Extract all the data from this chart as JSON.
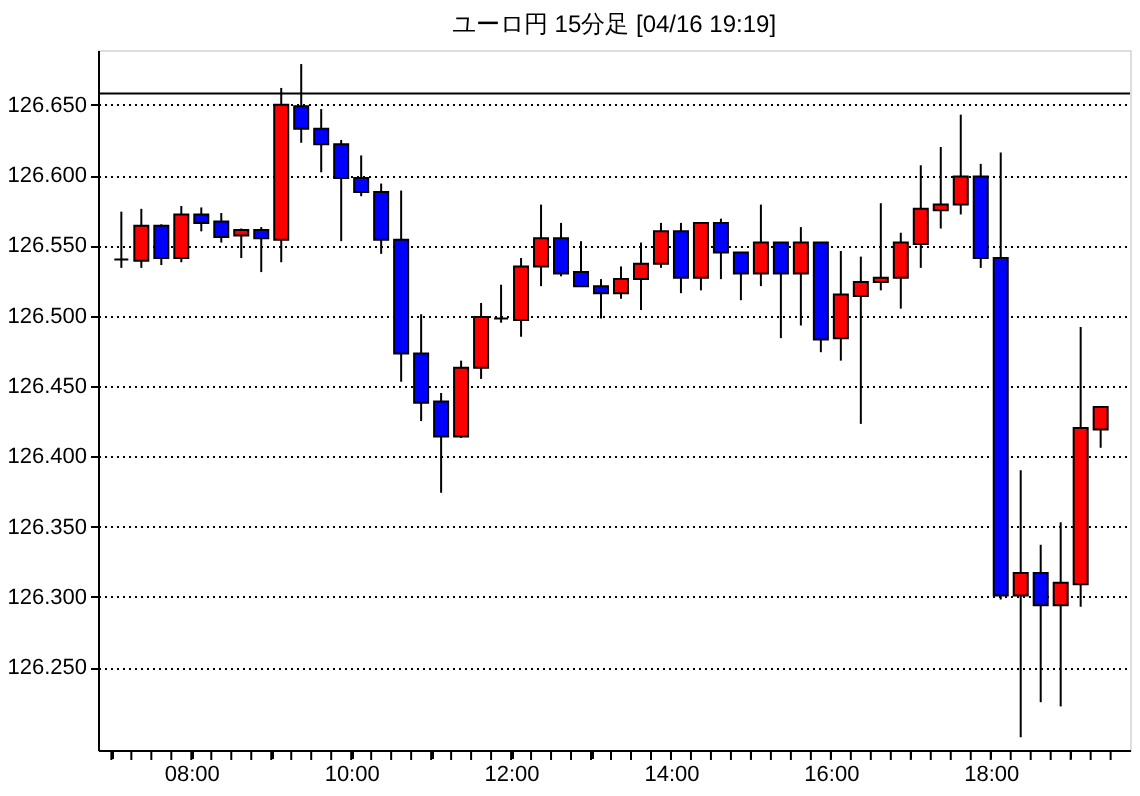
{
  "chart_data": {
    "type": "candlestick",
    "title": "ユーロ円 15分足 [04/16 19:19]",
    "x": [
      7.125,
      7.375,
      7.625,
      7.875,
      8.125,
      8.375,
      8.625,
      8.875,
      9.125,
      9.375,
      9.625,
      9.875,
      10.125,
      10.375,
      10.625,
      10.875,
      11.125,
      11.375,
      11.625,
      11.875,
      12.125,
      12.375,
      12.625,
      12.875,
      13.125,
      13.375,
      13.625,
      13.875,
      14.125,
      14.375,
      14.625,
      14.875,
      15.125,
      15.375,
      15.625,
      15.875,
      16.125,
      16.375,
      16.625,
      16.875,
      17.125,
      17.375,
      17.625,
      17.875,
      18.125,
      18.375,
      18.625,
      18.875,
      19.125,
      19.375
    ],
    "ohlc": [
      [
        126.54,
        126.574,
        126.534,
        126.54
      ],
      [
        126.539,
        126.576,
        126.534,
        126.564
      ],
      [
        126.564,
        126.565,
        126.536,
        126.541
      ],
      [
        126.541,
        126.578,
        126.538,
        126.572
      ],
      [
        126.572,
        126.577,
        126.56,
        126.566
      ],
      [
        126.567,
        126.573,
        126.552,
        126.556
      ],
      [
        126.557,
        126.562,
        126.541,
        126.561
      ],
      [
        126.561,
        126.563,
        126.531,
        126.555
      ],
      [
        126.554,
        126.662,
        126.538,
        126.65
      ],
      [
        126.649,
        126.679,
        126.623,
        126.633
      ],
      [
        126.633,
        126.647,
        126.602,
        126.622
      ],
      [
        126.622,
        126.625,
        126.553,
        126.598
      ],
      [
        126.598,
        126.614,
        126.585,
        126.588
      ],
      [
        126.588,
        126.594,
        126.544,
        126.554
      ],
      [
        126.554,
        126.589,
        126.453,
        126.473
      ],
      [
        126.473,
        126.501,
        126.425,
        126.438
      ],
      [
        126.439,
        126.445,
        126.374,
        126.414
      ],
      [
        126.414,
        126.468,
        126.413,
        126.463
      ],
      [
        126.463,
        126.509,
        126.455,
        126.499
      ],
      [
        126.498,
        126.522,
        126.495,
        126.498
      ],
      [
        126.497,
        126.541,
        126.485,
        126.535
      ],
      [
        126.535,
        126.579,
        126.521,
        126.555
      ],
      [
        126.555,
        126.566,
        126.528,
        126.53
      ],
      [
        126.531,
        126.553,
        126.521,
        126.521
      ],
      [
        126.521,
        126.526,
        126.498,
        126.516
      ],
      [
        126.516,
        126.535,
        126.512,
        126.526
      ],
      [
        126.526,
        126.552,
        126.504,
        126.537
      ],
      [
        126.537,
        126.566,
        126.534,
        126.56
      ],
      [
        126.56,
        126.566,
        126.516,
        126.527
      ],
      [
        126.527,
        126.566,
        126.518,
        126.566
      ],
      [
        126.566,
        126.569,
        126.526,
        126.545
      ],
      [
        126.545,
        126.545,
        126.511,
        126.53
      ],
      [
        126.53,
        126.579,
        126.521,
        126.552
      ],
      [
        126.552,
        126.552,
        126.484,
        126.53
      ],
      [
        126.53,
        126.563,
        126.493,
        126.552
      ],
      [
        126.552,
        126.552,
        126.474,
        126.483
      ],
      [
        126.484,
        126.546,
        126.468,
        126.515
      ],
      [
        126.514,
        126.542,
        126.423,
        126.524
      ],
      [
        126.524,
        126.58,
        126.518,
        126.527
      ],
      [
        126.527,
        126.559,
        126.505,
        126.552
      ],
      [
        126.551,
        126.607,
        126.534,
        126.576
      ],
      [
        126.575,
        126.62,
        126.562,
        126.579
      ],
      [
        126.579,
        126.643,
        126.572,
        126.599
      ],
      [
        126.599,
        126.608,
        126.534,
        126.541
      ],
      [
        126.541,
        126.616,
        126.298,
        126.301
      ],
      [
        126.301,
        126.39,
        126.2,
        126.317
      ],
      [
        126.317,
        126.337,
        126.225,
        126.294
      ],
      [
        126.294,
        126.353,
        126.222,
        126.31
      ],
      [
        126.309,
        126.492,
        126.293,
        126.42
      ],
      [
        126.419,
        126.435,
        126.406,
        126.435
      ]
    ],
    "colors": [
      "#000000",
      "#ff0000",
      "#0000ff",
      "#ff0000",
      "#0000ff",
      "#0000ff",
      "#ff0000",
      "#0000ff",
      "#ff0000",
      "#0000ff",
      "#0000ff",
      "#0000ff",
      "#0000ff",
      "#0000ff",
      "#0000ff",
      "#0000ff",
      "#0000ff",
      "#ff0000",
      "#ff0000",
      "#000000",
      "#ff0000",
      "#ff0000",
      "#0000ff",
      "#0000ff",
      "#0000ff",
      "#ff0000",
      "#ff0000",
      "#ff0000",
      "#0000ff",
      "#ff0000",
      "#0000ff",
      "#0000ff",
      "#ff0000",
      "#0000ff",
      "#ff0000",
      "#0000ff",
      "#ff0000",
      "#ff0000",
      "#ff0000",
      "#ff0000",
      "#ff0000",
      "#ff0000",
      "#ff0000",
      "#0000ff",
      "#0000ff",
      "#ff0000",
      "#0000ff",
      "#ff0000",
      "#ff0000",
      "#ff0000"
    ],
    "xlim": [
      6.833,
      19.742
    ],
    "xticks": [
      {
        "value": 7.0,
        "label": null
      },
      {
        "value": 7.25,
        "label": null
      },
      {
        "value": 7.5,
        "label": null
      },
      {
        "value": 7.75,
        "label": null
      },
      {
        "value": 8,
        "label": "08:00"
      },
      {
        "value": 8.25,
        "label": null
      },
      {
        "value": 8.5,
        "label": null
      },
      {
        "value": 8.75,
        "label": null
      },
      {
        "value": 9.0,
        "label": null
      },
      {
        "value": 9.25,
        "label": null
      },
      {
        "value": 9.5,
        "label": null
      },
      {
        "value": 9.75,
        "label": null
      },
      {
        "value": 10,
        "label": "10:00"
      },
      {
        "value": 10.25,
        "label": null
      },
      {
        "value": 10.5,
        "label": null
      },
      {
        "value": 10.75,
        "label": null
      },
      {
        "value": 11.0,
        "label": null
      },
      {
        "value": 11.25,
        "label": null
      },
      {
        "value": 11.5,
        "label": null
      },
      {
        "value": 11.75,
        "label": null
      },
      {
        "value": 12,
        "label": "12:00"
      },
      {
        "value": 12.25,
        "label": null
      },
      {
        "value": 12.5,
        "label": null
      },
      {
        "value": 12.75,
        "label": null
      },
      {
        "value": 13.0,
        "label": null
      },
      {
        "value": 13.25,
        "label": null
      },
      {
        "value": 13.5,
        "label": null
      },
      {
        "value": 13.75,
        "label": null
      },
      {
        "value": 14,
        "label": "14:00"
      },
      {
        "value": 14.25,
        "label": null
      },
      {
        "value": 14.5,
        "label": null
      },
      {
        "value": 14.75,
        "label": null
      },
      {
        "value": 15.0,
        "label": null
      },
      {
        "value": 15.25,
        "label": null
      },
      {
        "value": 15.5,
        "label": null
      },
      {
        "value": 15.75,
        "label": null
      },
      {
        "value": 16,
        "label": "16:00"
      },
      {
        "value": 16.25,
        "label": null
      },
      {
        "value": 16.5,
        "label": null
      },
      {
        "value": 16.75,
        "label": null
      },
      {
        "value": 17.0,
        "label": null
      },
      {
        "value": 17.25,
        "label": null
      },
      {
        "value": 17.5,
        "label": null
      },
      {
        "value": 17.75,
        "label": null
      },
      {
        "value": 18,
        "label": "18:00"
      },
      {
        "value": 18.25,
        "label": null
      },
      {
        "value": 18.5,
        "label": null
      },
      {
        "value": 18.75,
        "label": null
      },
      {
        "value": 19.0,
        "label": null
      },
      {
        "value": 19.25,
        "label": null
      },
      {
        "value": 19.5,
        "label": null
      }
    ],
    "ylim": [
      126.191,
      126.689
    ],
    "yticks": [
      {
        "value": 126.25,
        "label": "126.250"
      },
      {
        "value": 126.3,
        "label": "126.300"
      },
      {
        "value": 126.35,
        "label": "126.350"
      },
      {
        "value": 126.4,
        "label": "126.400"
      },
      {
        "value": 126.45,
        "label": "126.450"
      },
      {
        "value": 126.5,
        "label": "126.500"
      },
      {
        "value": 126.55,
        "label": "126.550"
      },
      {
        "value": 126.6,
        "label": "126.600"
      },
      {
        "value": 126.65,
        "label": "126.650"
      }
    ],
    "grid": "y",
    "ref_lines": [
      {
        "axis": "y",
        "value": 126.658,
        "color": "#000000",
        "line_style": "solid"
      }
    ]
  }
}
